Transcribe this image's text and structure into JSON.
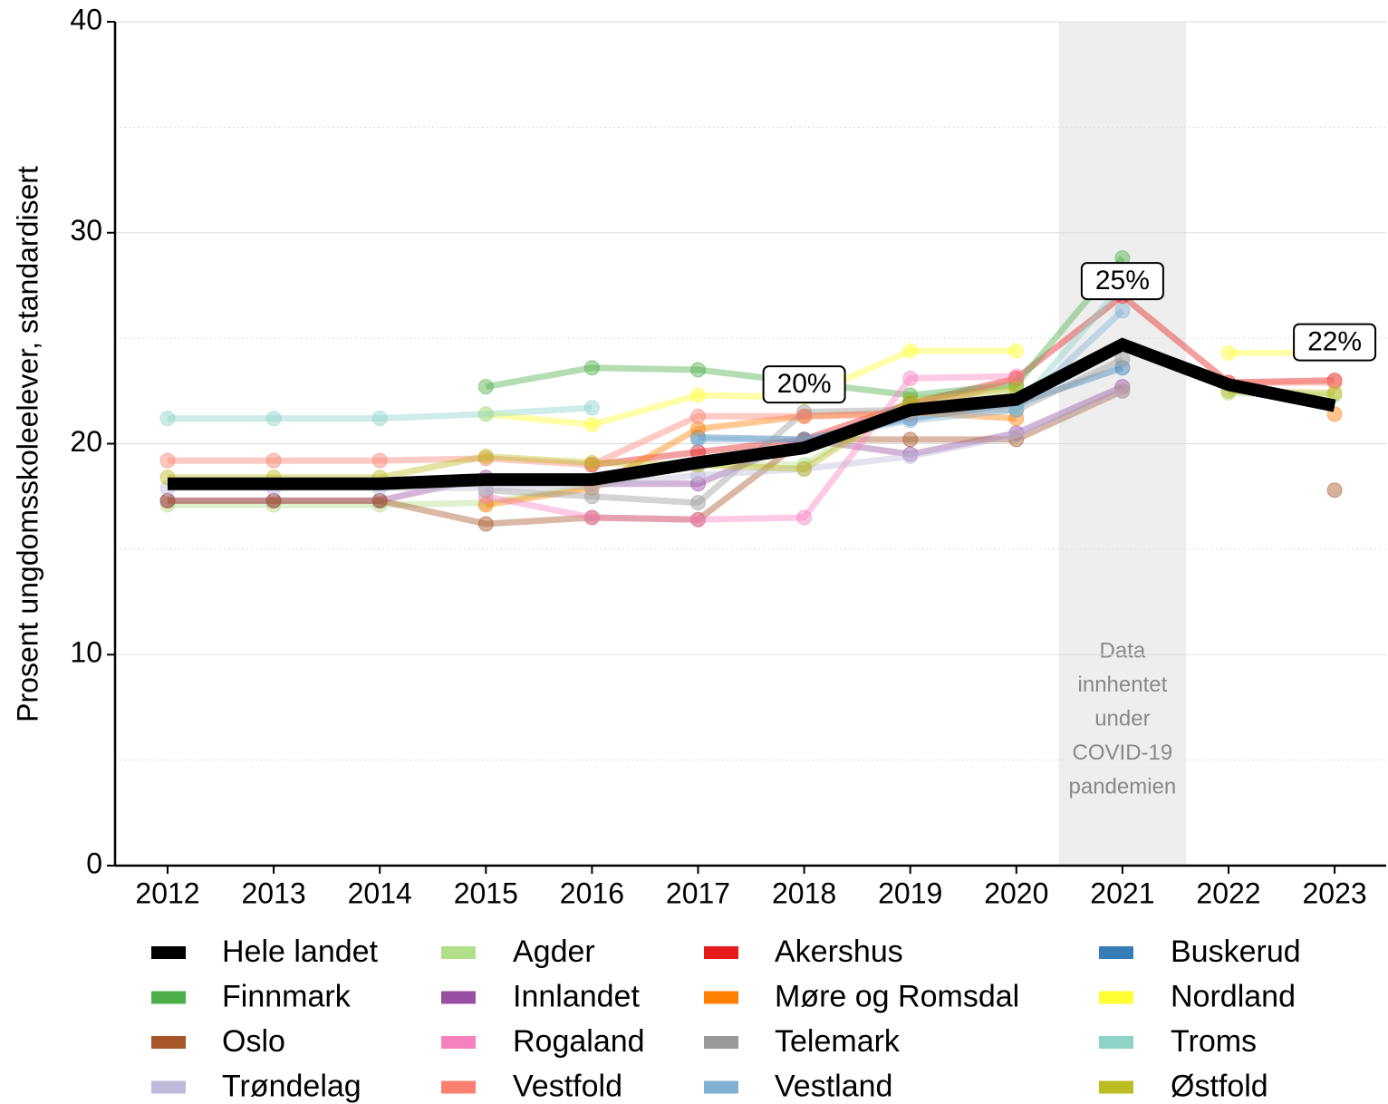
{
  "chart_data": {
    "type": "line",
    "ylabel": "Prosent ungdomsskoleelever, standardisert",
    "categories": [
      "2012",
      "2013",
      "2014",
      "2015",
      "2016",
      "2017",
      "2018",
      "2019",
      "2020",
      "2021",
      "2022",
      "2023"
    ],
    "ylim": [
      0,
      40
    ],
    "yticks": [
      0,
      10,
      20,
      30,
      40
    ],
    "yminor": [
      5,
      15,
      25,
      35
    ],
    "grid": true,
    "legend": "bottom",
    "shade": {
      "category": "2021",
      "text_lines": [
        "Data",
        "innhentet",
        "under",
        "COVID-19",
        "pandemien"
      ]
    },
    "series": [
      {
        "name": "Hele landet",
        "color": "#000000",
        "emphasis": true,
        "values": [
          18.1,
          18.1,
          18.1,
          18.3,
          18.3,
          19.1,
          19.8,
          21.6,
          22.1,
          24.7,
          22.8,
          21.8
        ],
        "value_labels": [
          null,
          null,
          null,
          null,
          null,
          null,
          "20%",
          null,
          null,
          "25%",
          null,
          "22%"
        ]
      },
      {
        "name": "Agder",
        "color": "#b2df8a",
        "values": [
          17.1,
          17.1,
          17.1,
          17.2,
          18.0,
          19.0,
          19.0,
          22.1,
          22.7,
          null,
          22.4,
          22.3
        ]
      },
      {
        "name": "Akershus",
        "color": "#e41a1c",
        "values": [
          null,
          null,
          null,
          null,
          19.0,
          19.6,
          20.2,
          21.9,
          23.1,
          27.0,
          22.9,
          23.0
        ]
      },
      {
        "name": "Buskerud",
        "color": "#377eb8",
        "values": [
          null,
          null,
          null,
          null,
          null,
          20.3,
          20.2,
          21.2,
          21.9,
          23.6,
          null,
          null
        ]
      },
      {
        "name": "Finnmark",
        "color": "#4daf4a",
        "values": [
          null,
          null,
          null,
          22.7,
          23.6,
          23.5,
          22.9,
          22.3,
          22.8,
          28.8,
          null,
          null
        ]
      },
      {
        "name": "Innlandet",
        "color": "#984ea3",
        "values": [
          17.3,
          17.3,
          17.3,
          18.4,
          18.1,
          18.1,
          20.2,
          19.5,
          20.5,
          22.7,
          null,
          null
        ]
      },
      {
        "name": "Møre og Romsdal",
        "color": "#ff7f00",
        "values": [
          null,
          null,
          null,
          17.1,
          17.9,
          20.7,
          21.3,
          21.5,
          21.2,
          null,
          null,
          21.4
        ]
      },
      {
        "name": "Nordland",
        "color": "#ffff33",
        "values": [
          null,
          null,
          null,
          21.4,
          20.9,
          22.3,
          22.2,
          24.4,
          24.4,
          null,
          24.3,
          24.3
        ]
      },
      {
        "name": "Oslo",
        "color": "#a65628",
        "values": [
          17.3,
          17.3,
          17.3,
          16.2,
          16.5,
          16.4,
          20.2,
          20.2,
          20.2,
          22.5,
          null,
          17.8
        ]
      },
      {
        "name": "Rogaland",
        "color": "#f781bf",
        "values": [
          null,
          null,
          null,
          17.5,
          16.5,
          16.4,
          16.5,
          23.1,
          23.2,
          null,
          null,
          null
        ]
      },
      {
        "name": "Telemark",
        "color": "#999999",
        "values": [
          null,
          null,
          null,
          17.8,
          17.5,
          17.2,
          21.5,
          21.6,
          21.6,
          24.0,
          null,
          null
        ]
      },
      {
        "name": "Troms",
        "color": "#8dd3c7",
        "values": [
          21.2,
          21.2,
          21.2,
          21.4,
          21.7,
          null,
          null,
          null,
          21.7,
          27.5,
          null,
          null
        ]
      },
      {
        "name": "Trøndelag",
        "color": "#bebada",
        "values": [
          17.9,
          17.9,
          17.9,
          17.9,
          18.0,
          18.5,
          18.8,
          19.4,
          20.4,
          22.5,
          null,
          null
        ]
      },
      {
        "name": "Vestfold",
        "color": "#fb8072",
        "values": [
          19.2,
          19.2,
          19.2,
          19.3,
          19.0,
          21.3,
          21.3,
          21.4,
          23.1,
          null,
          22.9,
          22.9
        ]
      },
      {
        "name": "Vestland",
        "color": "#80b1d3",
        "values": [
          null,
          null,
          null,
          null,
          null,
          20.2,
          20.2,
          21.1,
          21.6,
          26.3,
          null,
          null
        ]
      },
      {
        "name": "Østfold",
        "color": "#bcbd22",
        "values": [
          18.4,
          18.4,
          18.4,
          19.4,
          19.1,
          19.0,
          18.8,
          22.0,
          22.6,
          null,
          22.5,
          22.4
        ]
      }
    ]
  }
}
